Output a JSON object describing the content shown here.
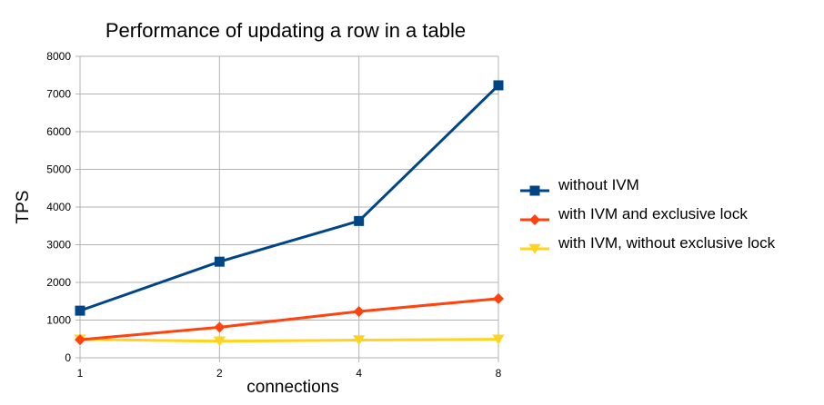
{
  "chart_data": {
    "type": "line",
    "title": "Performance of updating a row in a table",
    "xlabel": "connections",
    "ylabel": "TPS",
    "categories": [
      "1",
      "2",
      "4",
      "8"
    ],
    "ylim": [
      0,
      8000
    ],
    "ytick_step": 1000,
    "ytick_labels": [
      "0",
      "1000",
      "2000",
      "3000",
      "4000",
      "5000",
      "6000",
      "7000",
      "8000"
    ],
    "grid": true,
    "legend_position": "right",
    "series": [
      {
        "name": "without IVM",
        "values": [
          1250,
          2550,
          3630,
          7230
        ],
        "color": "#004586",
        "marker": "square"
      },
      {
        "name": "with IVM and exclusive lock",
        "values": [
          480,
          810,
          1230,
          1570
        ],
        "color": "#ff420e",
        "marker": "diamond"
      },
      {
        "name": "with IVM, without exclusive lock",
        "values": [
          490,
          440,
          470,
          490
        ],
        "color": "#ffd320",
        "marker": "triangle-down"
      }
    ]
  }
}
